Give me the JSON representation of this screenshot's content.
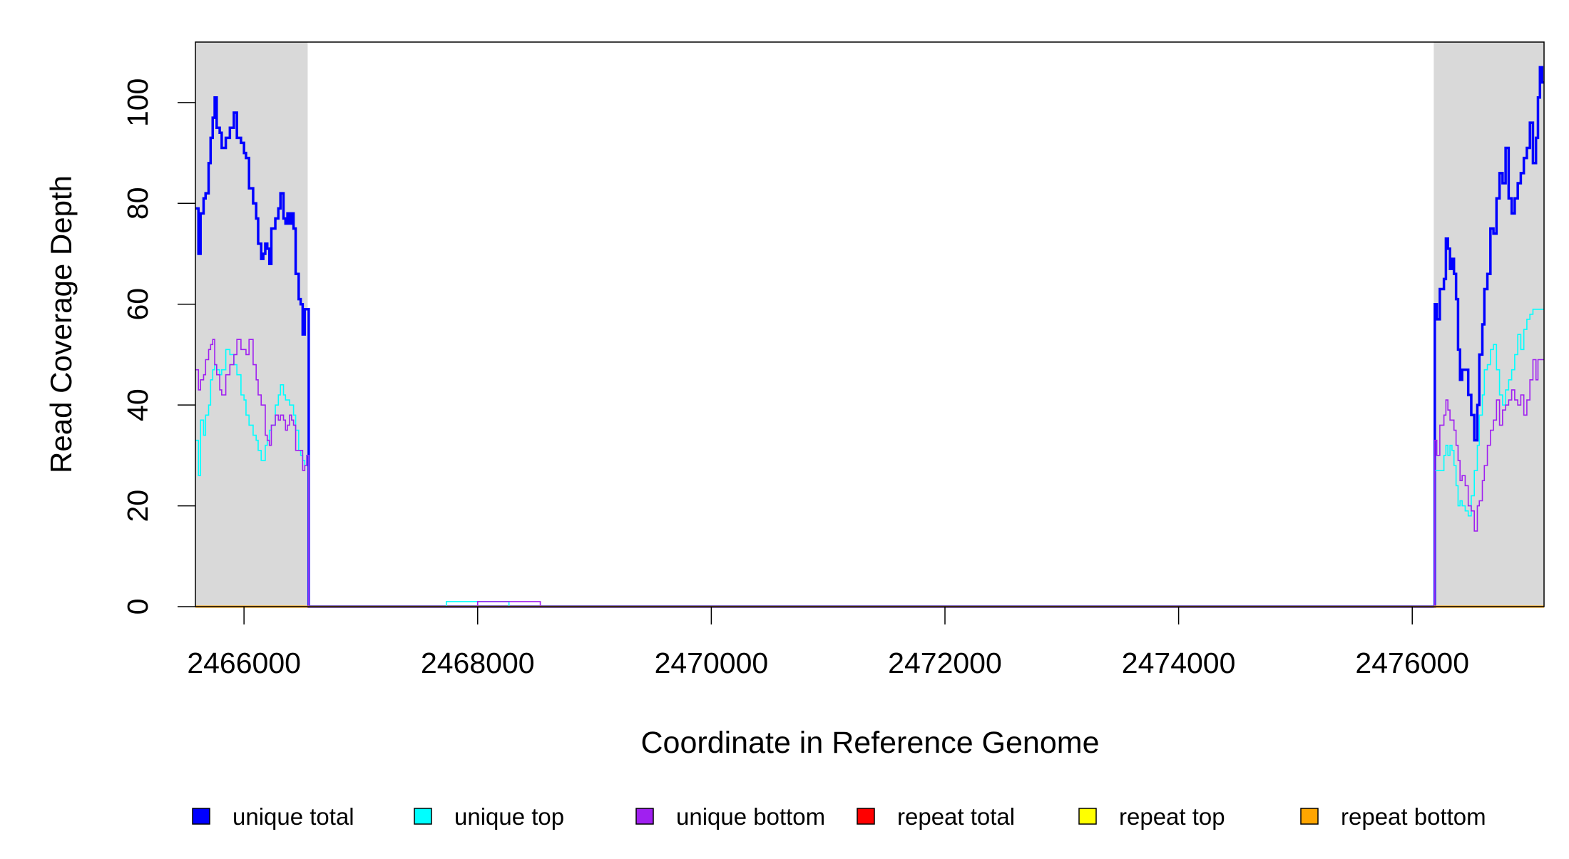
{
  "chart_data": {
    "type": "line",
    "title": "",
    "xlabel": "Coordinate in Reference Genome",
    "ylabel": "Read Coverage Depth",
    "xlim": [
      2465584,
      2477128
    ],
    "ylim": [
      0,
      112
    ],
    "xticks": [
      2466000,
      2468000,
      2470000,
      2472000,
      2474000,
      2476000
    ],
    "xtick_labels": [
      "2466000",
      "2468000",
      "2470000",
      "2472000",
      "2474000",
      "2476000"
    ],
    "yticks": [
      0,
      20,
      40,
      60,
      80,
      100
    ],
    "ytick_labels": [
      "0",
      "20",
      "40",
      "60",
      "80",
      "100"
    ],
    "grid": false,
    "legend_placement": "bottom",
    "shaded_regions": [
      {
        "from": 2465584,
        "to": 2466545,
        "color": "#d9d9d9"
      },
      {
        "from": 2476184,
        "to": 2477128,
        "color": "#d9d9d9"
      }
    ],
    "x_left": [
      2465584,
      2465610,
      2465628,
      2465654,
      2465671,
      2465697,
      2465714,
      2465732,
      2465749,
      2465766,
      2465792,
      2465809,
      2465844,
      2465879,
      2465913,
      2465939,
      2465974,
      2466000,
      2466017,
      2466043,
      2466078,
      2466104,
      2466121,
      2466147,
      2466165,
      2466182,
      2466199,
      2466217,
      2466234,
      2466268,
      2466294,
      2466312,
      2466338,
      2466355,
      2466372,
      2466390,
      2466407,
      2466424,
      2466442,
      2466468,
      2466485,
      2466502,
      2466520,
      2466537,
      2466554
    ],
    "x_right": [
      2476193,
      2476210,
      2476236,
      2476271,
      2476288,
      2476305,
      2476323,
      2476340,
      2476357,
      2476375,
      2476392,
      2476409,
      2476427,
      2476453,
      2476479,
      2476505,
      2476531,
      2476557,
      2476574,
      2476600,
      2476617,
      2476643,
      2476669,
      2476695,
      2476721,
      2476747,
      2476773,
      2476799,
      2476825,
      2476851,
      2476877,
      2476903,
      2476929,
      2476955,
      2476981,
      2477007,
      2477033,
      2477059,
      2477076,
      2477093,
      2477111,
      2477128
    ],
    "series": [
      {
        "name": "unique total",
        "color": "#0000ff",
        "width": 3.5,
        "left": [
          79,
          70,
          78,
          81,
          82,
          88,
          93,
          97,
          101,
          95,
          94,
          91,
          93,
          95,
          98,
          93,
          92,
          90,
          89,
          83,
          80,
          77,
          72,
          69,
          70,
          72,
          71,
          68,
          75,
          77,
          79,
          82,
          77,
          76,
          78,
          76,
          78,
          75,
          66,
          61,
          60,
          54,
          59,
          59,
          0
        ],
        "middle": [],
        "right": [
          60,
          57,
          63,
          65,
          73,
          71,
          67,
          69,
          66,
          61,
          51,
          45,
          47,
          47,
          42,
          38,
          33,
          40,
          50,
          56,
          63,
          66,
          75,
          74,
          81,
          86,
          84,
          91,
          81,
          78,
          81,
          84,
          86,
          89,
          91,
          96,
          88,
          93,
          101,
          107,
          104,
          104
        ]
      },
      {
        "name": "unique top",
        "color": "#00ffff",
        "width": 1.6,
        "left": [
          33,
          26,
          37,
          34,
          38,
          40,
          45,
          47,
          48,
          47,
          46,
          47,
          51,
          50,
          48,
          46,
          42,
          41,
          38,
          36,
          34,
          33,
          31,
          29,
          29,
          32,
          33,
          35,
          36,
          40,
          42,
          44,
          42,
          41,
          41,
          40,
          40,
          38,
          35,
          31,
          30,
          29,
          28,
          30,
          0
        ],
        "middle": [
          [
            2467732,
            1
          ],
          [
            2468000,
            1
          ]
        ],
        "right": [
          27,
          27,
          27,
          30,
          32,
          30,
          32,
          31,
          28,
          24,
          20,
          21,
          20,
          19,
          18,
          22,
          27,
          32,
          38,
          42,
          47,
          48,
          51,
          52,
          47,
          42,
          40,
          43,
          45,
          47,
          50,
          54,
          51,
          55,
          57,
          58,
          59,
          59,
          59,
          59,
          59,
          59
        ]
      },
      {
        "name": "unique bottom",
        "color": "#a020f0",
        "width": 1.6,
        "left": [
          47,
          43,
          45,
          46,
          49,
          51,
          52,
          53,
          48,
          46,
          43,
          42,
          46,
          48,
          50,
          53,
          51,
          51,
          50,
          53,
          48,
          45,
          42,
          40,
          40,
          34,
          33,
          32,
          36,
          38,
          37,
          38,
          37,
          35,
          36,
          38,
          37,
          36,
          31,
          31,
          31,
          27,
          28,
          30,
          0
        ],
        "middle": [
          [
            2468000,
            1
          ],
          [
            2468268,
            1
          ]
        ],
        "right": [
          33,
          30,
          36,
          38,
          41,
          39,
          37,
          37,
          35,
          32,
          29,
          25,
          26,
          24,
          20,
          19,
          15,
          20,
          21,
          25,
          28,
          32,
          35,
          37,
          41,
          36,
          39,
          40,
          41,
          43,
          41,
          40,
          42,
          38,
          41,
          45,
          49,
          45,
          49,
          49,
          49,
          49
        ]
      },
      {
        "name": "repeat total",
        "color": "#ff0000",
        "width": 2,
        "constant": 0
      },
      {
        "name": "repeat top",
        "color": "#ffff00",
        "width": 2,
        "constant": 0
      },
      {
        "name": "repeat bottom",
        "color": "#ffa500",
        "width": 2.5,
        "constant": 0
      }
    ]
  },
  "legend": [
    {
      "label": "unique total",
      "color": "#0000ff"
    },
    {
      "label": "unique top",
      "color": "#00ffff"
    },
    {
      "label": "unique bottom",
      "color": "#a020f0"
    },
    {
      "label": "repeat total",
      "color": "#ff0000"
    },
    {
      "label": "repeat top",
      "color": "#ffff00"
    },
    {
      "label": "repeat bottom",
      "color": "#ffa500"
    }
  ]
}
